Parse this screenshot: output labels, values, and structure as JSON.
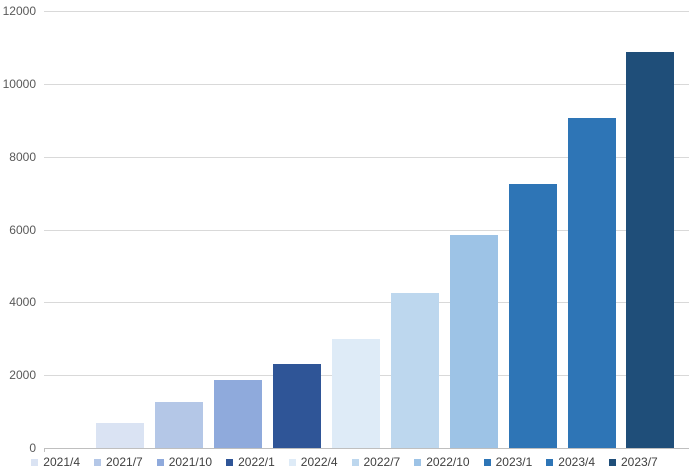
{
  "chart_data": {
    "type": "bar",
    "title": "",
    "xlabel": "",
    "ylabel": "",
    "categories": [
      "2021/4",
      "2021/7",
      "2021/10",
      "2022/1",
      "2022/4",
      "2022/7",
      "2022/10",
      "2023/1",
      "2023/4",
      "2023/7"
    ],
    "values": [
      680,
      1250,
      1880,
      2320,
      3000,
      4260,
      5850,
      7250,
      9060,
      10870
    ],
    "colors": [
      "#dae3f3",
      "#b4c7e7",
      "#8faadc",
      "#2f5597",
      "#deebf7",
      "#bdd7ee",
      "#9dc3e6",
      "#2e75b6",
      "#2e75b6",
      "#1f4e79"
    ],
    "yticks": [
      0,
      2000,
      4000,
      6000,
      8000,
      10000,
      12000
    ],
    "ylim": [
      0,
      12000
    ],
    "grid": true,
    "gridline_color": "#d9d9d9",
    "axis_line_color": "#bfbfbf",
    "tick_label_color": "#595959",
    "legend_text_color": "#404040",
    "legend_position": "bottom"
  }
}
